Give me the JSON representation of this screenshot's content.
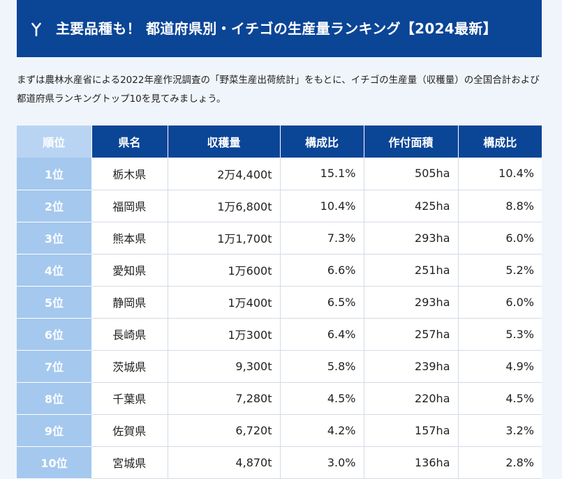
{
  "heading": {
    "icon": "strawberry-sprout-icon",
    "title": "主要品種も！ 都道府県別・イチゴの生産量ランキング【2024最新】"
  },
  "intro": "まずは農林水産省による2022年産作況調査の「野菜生産出荷統計」をもとに、イチゴの生産量（収穫量）の全国合計および都道府県ランキングトップ10を見てみましょう。",
  "table": {
    "headers": [
      "順位",
      "県名",
      "収穫量",
      "構成比",
      "作付面積",
      "構成比"
    ],
    "rows": [
      {
        "rank": "1位",
        "pref": "栃木県",
        "harvest": "2万4,400t",
        "harvest_share": "15.1%",
        "area": "505ha",
        "area_share": "10.4%"
      },
      {
        "rank": "2位",
        "pref": "福岡県",
        "harvest": "1万6,800t",
        "harvest_share": "10.4%",
        "area": "425ha",
        "area_share": "8.8%"
      },
      {
        "rank": "3位",
        "pref": "熊本県",
        "harvest": "1万1,700t",
        "harvest_share": "7.3%",
        "area": "293ha",
        "area_share": "6.0%"
      },
      {
        "rank": "4位",
        "pref": "愛知県",
        "harvest": "1万600t",
        "harvest_share": "6.6%",
        "area": "251ha",
        "area_share": "5.2%"
      },
      {
        "rank": "5位",
        "pref": "静岡県",
        "harvest": "1万400t",
        "harvest_share": "6.5%",
        "area": "293ha",
        "area_share": "6.0%"
      },
      {
        "rank": "6位",
        "pref": "長崎県",
        "harvest": "1万300t",
        "harvest_share": "6.4%",
        "area": "257ha",
        "area_share": "5.3%"
      },
      {
        "rank": "7位",
        "pref": "茨城県",
        "harvest": "9,300t",
        "harvest_share": "5.8%",
        "area": "239ha",
        "area_share": "4.9%"
      },
      {
        "rank": "8位",
        "pref": "千葉県",
        "harvest": "7,280t",
        "harvest_share": "4.5%",
        "area": "220ha",
        "area_share": "4.5%"
      },
      {
        "rank": "9位",
        "pref": "佐賀県",
        "harvest": "6,720t",
        "harvest_share": "4.2%",
        "area": "157ha",
        "area_share": "3.2%"
      },
      {
        "rank": "10位",
        "pref": "宮城県",
        "harvest": "4,870t",
        "harvest_share": "3.0%",
        "area": "136ha",
        "area_share": "2.8%"
      }
    ]
  }
}
